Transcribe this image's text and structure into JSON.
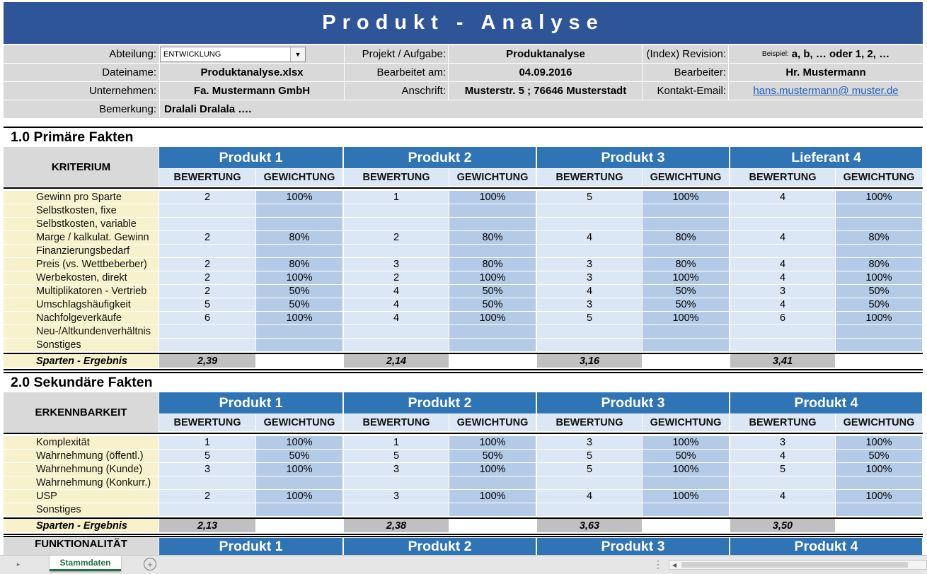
{
  "title": "Produkt - Analyse",
  "header": {
    "abteilung_label": "Abteilung:",
    "abteilung_value": "ENTWICKLUNG",
    "projekt_label": "Projekt / Aufgabe:",
    "projekt_value": "Produktanalyse",
    "revision_label": "(Index) Revision:",
    "revision_hint": "Beispiel:",
    "revision_value": "a, b, … oder 1, 2, …",
    "dateiname_label": "Dateiname:",
    "dateiname_value": "Produktanalyse.xlsx",
    "bearbeitet_label": "Bearbeitet am:",
    "bearbeitet_value": "04.09.2016",
    "bearbeiter_label": "Bearbeiter:",
    "bearbeiter_value": "Hr. Mustermann",
    "unternehmen_label": "Unternehmen:",
    "unternehmen_value": "Fa. Mustermann GmbH",
    "anschrift_label": "Anschrift:",
    "anschrift_value": "Musterstr. 5 ; 76646 Musterstadt",
    "email_label": "Kontakt-Email:",
    "email_value": "hans.mustermann@ muster.de",
    "bemerkung_label": "Bemerkung:",
    "bemerkung_value": "Dralali Dralala …."
  },
  "col_bewertung": "BEWERTUNG",
  "col_gewichtung": "GEWICHTUNG",
  "result_label": "Sparten - Ergebnis",
  "section1": {
    "title": "1.0 Primäre Fakten",
    "criterion": "KRITERIUM",
    "products": [
      "Produkt 1",
      "Produkt 2",
      "Produkt 3",
      "Lieferant 4"
    ],
    "rows": [
      {
        "label": "Gewinn pro Sparte",
        "v": [
          "2",
          "100%",
          "1",
          "100%",
          "5",
          "100%",
          "4",
          "100%"
        ]
      },
      {
        "label": "Selbstkosten, fixe",
        "v": [
          "",
          "",
          "",
          "",
          "",
          "",
          "",
          ""
        ]
      },
      {
        "label": "Selbstkosten, variable",
        "v": [
          "",
          "",
          "",
          "",
          "",
          "",
          "",
          ""
        ]
      },
      {
        "label": "Marge / kalkulat. Gewinn",
        "v": [
          "2",
          "80%",
          "2",
          "80%",
          "4",
          "80%",
          "4",
          "80%"
        ]
      },
      {
        "label": "Finanzierungsbedarf",
        "v": [
          "",
          "",
          "",
          "",
          "",
          "",
          "",
          ""
        ]
      },
      {
        "label": "Preis (vs. Wettbeberber)",
        "v": [
          "2",
          "80%",
          "3",
          "80%",
          "3",
          "80%",
          "4",
          "80%"
        ]
      },
      {
        "label": "Werbekosten, direkt",
        "v": [
          "2",
          "100%",
          "2",
          "100%",
          "3",
          "100%",
          "4",
          "100%"
        ]
      },
      {
        "label": "Multiplikatoren - Vertrieb",
        "v": [
          "2",
          "50%",
          "4",
          "50%",
          "4",
          "50%",
          "3",
          "50%"
        ]
      },
      {
        "label": "Umschlagshäufigkeit",
        "v": [
          "5",
          "50%",
          "4",
          "50%",
          "3",
          "50%",
          "4",
          "50%"
        ]
      },
      {
        "label": "Nachfolgeverkäufe",
        "v": [
          "6",
          "100%",
          "4",
          "100%",
          "5",
          "100%",
          "6",
          "100%"
        ]
      },
      {
        "label": "Neu-/Altkundenverhältnis",
        "v": [
          "",
          "",
          "",
          "",
          "",
          "",
          "",
          ""
        ]
      },
      {
        "label": "Sonstiges",
        "v": [
          "",
          "",
          "",
          "",
          "",
          "",
          "",
          ""
        ]
      }
    ],
    "results": [
      "2,39",
      "2,14",
      "3,16",
      "3,41"
    ]
  },
  "section2": {
    "title": "2.0 Sekundäre Fakten",
    "criterion": "ERKENNBARKEIT",
    "products": [
      "Produkt 1",
      "Produkt 2",
      "Produkt 3",
      "Produkt 4"
    ],
    "rows": [
      {
        "label": "Komplexität",
        "v": [
          "1",
          "100%",
          "1",
          "100%",
          "3",
          "100%",
          "3",
          "100%"
        ]
      },
      {
        "label": "Wahrnehmung (öffentl.)",
        "v": [
          "5",
          "50%",
          "5",
          "50%",
          "5",
          "50%",
          "4",
          "50%"
        ]
      },
      {
        "label": "Wahrnehmung (Kunde)",
        "v": [
          "3",
          "100%",
          "3",
          "100%",
          "5",
          "100%",
          "5",
          "100%"
        ]
      },
      {
        "label": "Wahrnehmung (Konkurr.)",
        "v": [
          "",
          "",
          "",
          "",
          "",
          "",
          "",
          ""
        ]
      },
      {
        "label": "USP",
        "v": [
          "2",
          "100%",
          "3",
          "100%",
          "4",
          "100%",
          "4",
          "100%"
        ]
      },
      {
        "label": "Sonstiges",
        "v": [
          "",
          "",
          "",
          "",
          "",
          "",
          "",
          ""
        ]
      }
    ],
    "results": [
      "2,13",
      "2,38",
      "3,63",
      "3,50"
    ]
  },
  "section3": {
    "criterion": "FUNKTIONALITÄT",
    "products": [
      "Produkt 1",
      "Produkt 2",
      "Produkt 3",
      "Produkt 4"
    ]
  },
  "tabbar": {
    "active_tab": "Stammdaten",
    "nav_icon": "triangle-right-icon",
    "add_icon": "plus-circle-icon",
    "menu_icon": "vertical-ellipsis-icon",
    "scroll_left_icon": "scroll-left-icon"
  },
  "colors": {
    "title_bar": "#2e5597",
    "product_header": "#2f74b5",
    "bewertung_cell": "#dce7f5",
    "gewichtung_cell": "#b4cbe7",
    "label_cell": "#f7f2cc",
    "result_cell": "#c0c0c0",
    "active_tab": "#217346"
  }
}
